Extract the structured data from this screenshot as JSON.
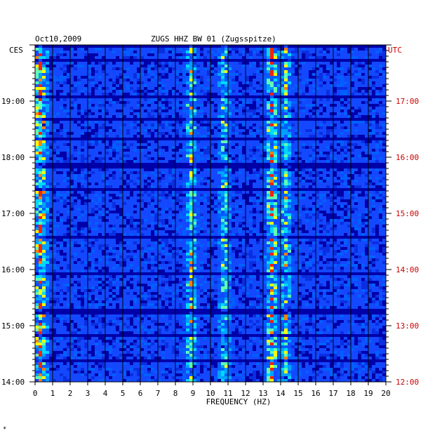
{
  "chart_data": {
    "type": "heatmap",
    "title": "ZUGS HHZ BW 01 (Zugsspitze)",
    "date": "Oct10,2009",
    "xlabel": "FREQUENCY (HZ)",
    "left_axis_label": "CES",
    "right_axis_label": "UTC",
    "x_ticks": [
      "0",
      "1",
      "2",
      "3",
      "4",
      "5",
      "6",
      "7",
      "8",
      "9",
      "10",
      "11",
      "12",
      "13",
      "14",
      "15",
      "16",
      "17",
      "18",
      "19",
      "20"
    ],
    "xlim": [
      0,
      20
    ],
    "left_time_ticks": [
      "19:00",
      "18:00",
      "17:00",
      "16:00",
      "15:00",
      "14:00"
    ],
    "right_time_ticks": [
      "17:00",
      "16:00",
      "15:00",
      "14:00",
      "13:00",
      "12:00"
    ],
    "time_range_ces": [
      "14:00",
      "19:55"
    ],
    "colors": {
      "background": "#0000a8",
      "low": "#0a2ee0",
      "mid": "#00c8ff",
      "high": "#ffff00",
      "peak": "#ff2000",
      "grid": "#000000",
      "utc_label": "#cc0000"
    },
    "energy_bands_hz": [
      {
        "freq": 0.3,
        "strength": "high"
      },
      {
        "freq": 8.9,
        "strength": "medium"
      },
      {
        "freq": 10.8,
        "strength": "medium"
      },
      {
        "freq": 13.5,
        "strength": "high"
      },
      {
        "freq": 14.3,
        "strength": "medium"
      }
    ]
  },
  "footer_mark": "*"
}
